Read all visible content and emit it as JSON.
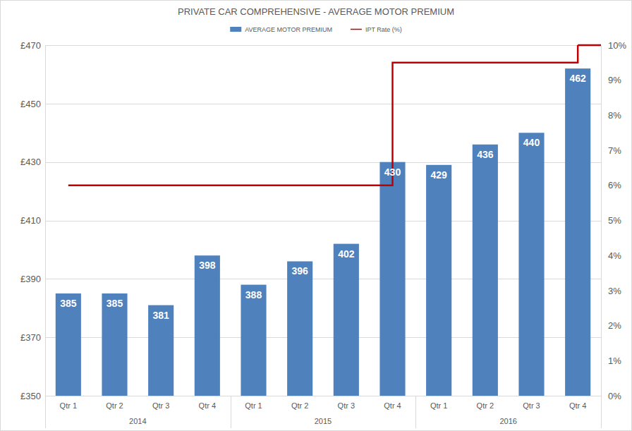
{
  "chart_data": {
    "type": "bar",
    "title": "PRIVATE CAR COMPREHENSIVE - AVERAGE MOTOR PREMIUM",
    "categories": [
      "Qtr 1",
      "Qtr 2",
      "Qtr 3",
      "Qtr 4",
      "Qtr 1",
      "Qtr 2",
      "Qtr 3",
      "Qtr 4",
      "Qtr 1",
      "Qtr 2",
      "Qtr 3",
      "Qtr 4"
    ],
    "category_groups": [
      "2014",
      "2015",
      "2016"
    ],
    "series": [
      {
        "name": "AVERAGE MOTOR PREMIUM",
        "type": "bar",
        "color": "#4f81bd",
        "values": [
          385,
          385,
          381,
          398,
          388,
          396,
          402,
          430,
          429,
          436,
          440,
          462
        ]
      },
      {
        "name": "IPT Rate (%)",
        "type": "line",
        "axis": "y2",
        "color": "#c00000",
        "line_style": "step",
        "values": [
          6,
          6,
          6,
          6,
          6,
          6,
          6,
          9.5,
          9.5,
          9.5,
          9.5,
          10
        ]
      }
    ],
    "ylim": [
      350,
      470
    ],
    "yticks": [
      {
        "value": 350,
        "label": "£350"
      },
      {
        "value": 370,
        "label": "£370"
      },
      {
        "value": 390,
        "label": "£390"
      },
      {
        "value": 410,
        "label": "£410"
      },
      {
        "value": 430,
        "label": "£430"
      },
      {
        "value": 450,
        "label": "£450"
      },
      {
        "value": 470,
        "label": "£470"
      }
    ],
    "y2lim": [
      0,
      10
    ],
    "y2ticks": [
      {
        "value": 0,
        "label": "0%"
      },
      {
        "value": 1,
        "label": "1%"
      },
      {
        "value": 2,
        "label": "2%"
      },
      {
        "value": 3,
        "label": "3%"
      },
      {
        "value": 4,
        "label": "4%"
      },
      {
        "value": 5,
        "label": "5%"
      },
      {
        "value": 6,
        "label": "6%"
      },
      {
        "value": 7,
        "label": "7%"
      },
      {
        "value": 8,
        "label": "8%"
      },
      {
        "value": 9,
        "label": "9%"
      },
      {
        "value": 10,
        "label": "10%"
      }
    ],
    "grid": true,
    "legend": "top",
    "data_labels": true
  }
}
